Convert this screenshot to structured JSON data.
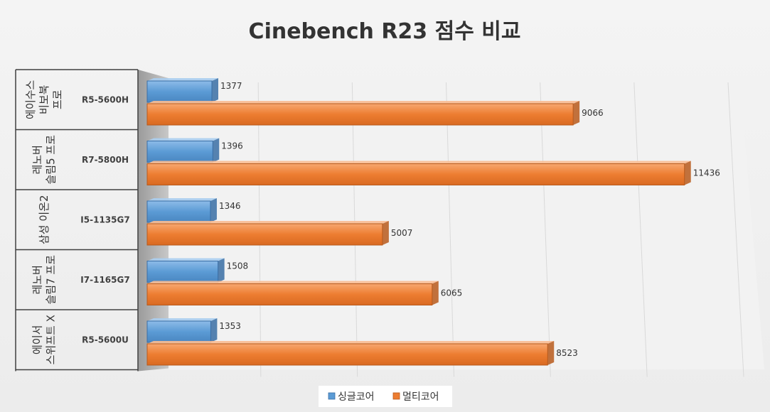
{
  "chart_data": {
    "type": "bar",
    "orientation": "horizontal",
    "title": "Cinebench R23 점수 비교",
    "categories": [
      {
        "group_lines": [
          "에이수스",
          "비보북",
          "프로"
        ],
        "model": "R5-5600H"
      },
      {
        "group_lines": [
          "레노버",
          "슬림5 프로"
        ],
        "model": "R7-5800H"
      },
      {
        "group_lines": [
          "삼성 이온2"
        ],
        "model": "I5-1135G7"
      },
      {
        "group_lines": [
          "레노버",
          "슬림7 프로"
        ],
        "model": "I7-1165G7"
      },
      {
        "group_lines": [
          "에이서",
          "스위프트 X"
        ],
        "model": "R5-5600U"
      }
    ],
    "series": [
      {
        "name": "싱글코어",
        "color": "#5b9bd5",
        "values": [
          1377,
          1396,
          1346,
          1508,
          1353
        ]
      },
      {
        "name": "멀티코어",
        "color": "#ed7d31",
        "values": [
          9066,
          11436,
          5007,
          6065,
          8523
        ]
      }
    ],
    "xlim": [
      0,
      12000
    ],
    "grid": true,
    "legend_position": "bottom"
  }
}
